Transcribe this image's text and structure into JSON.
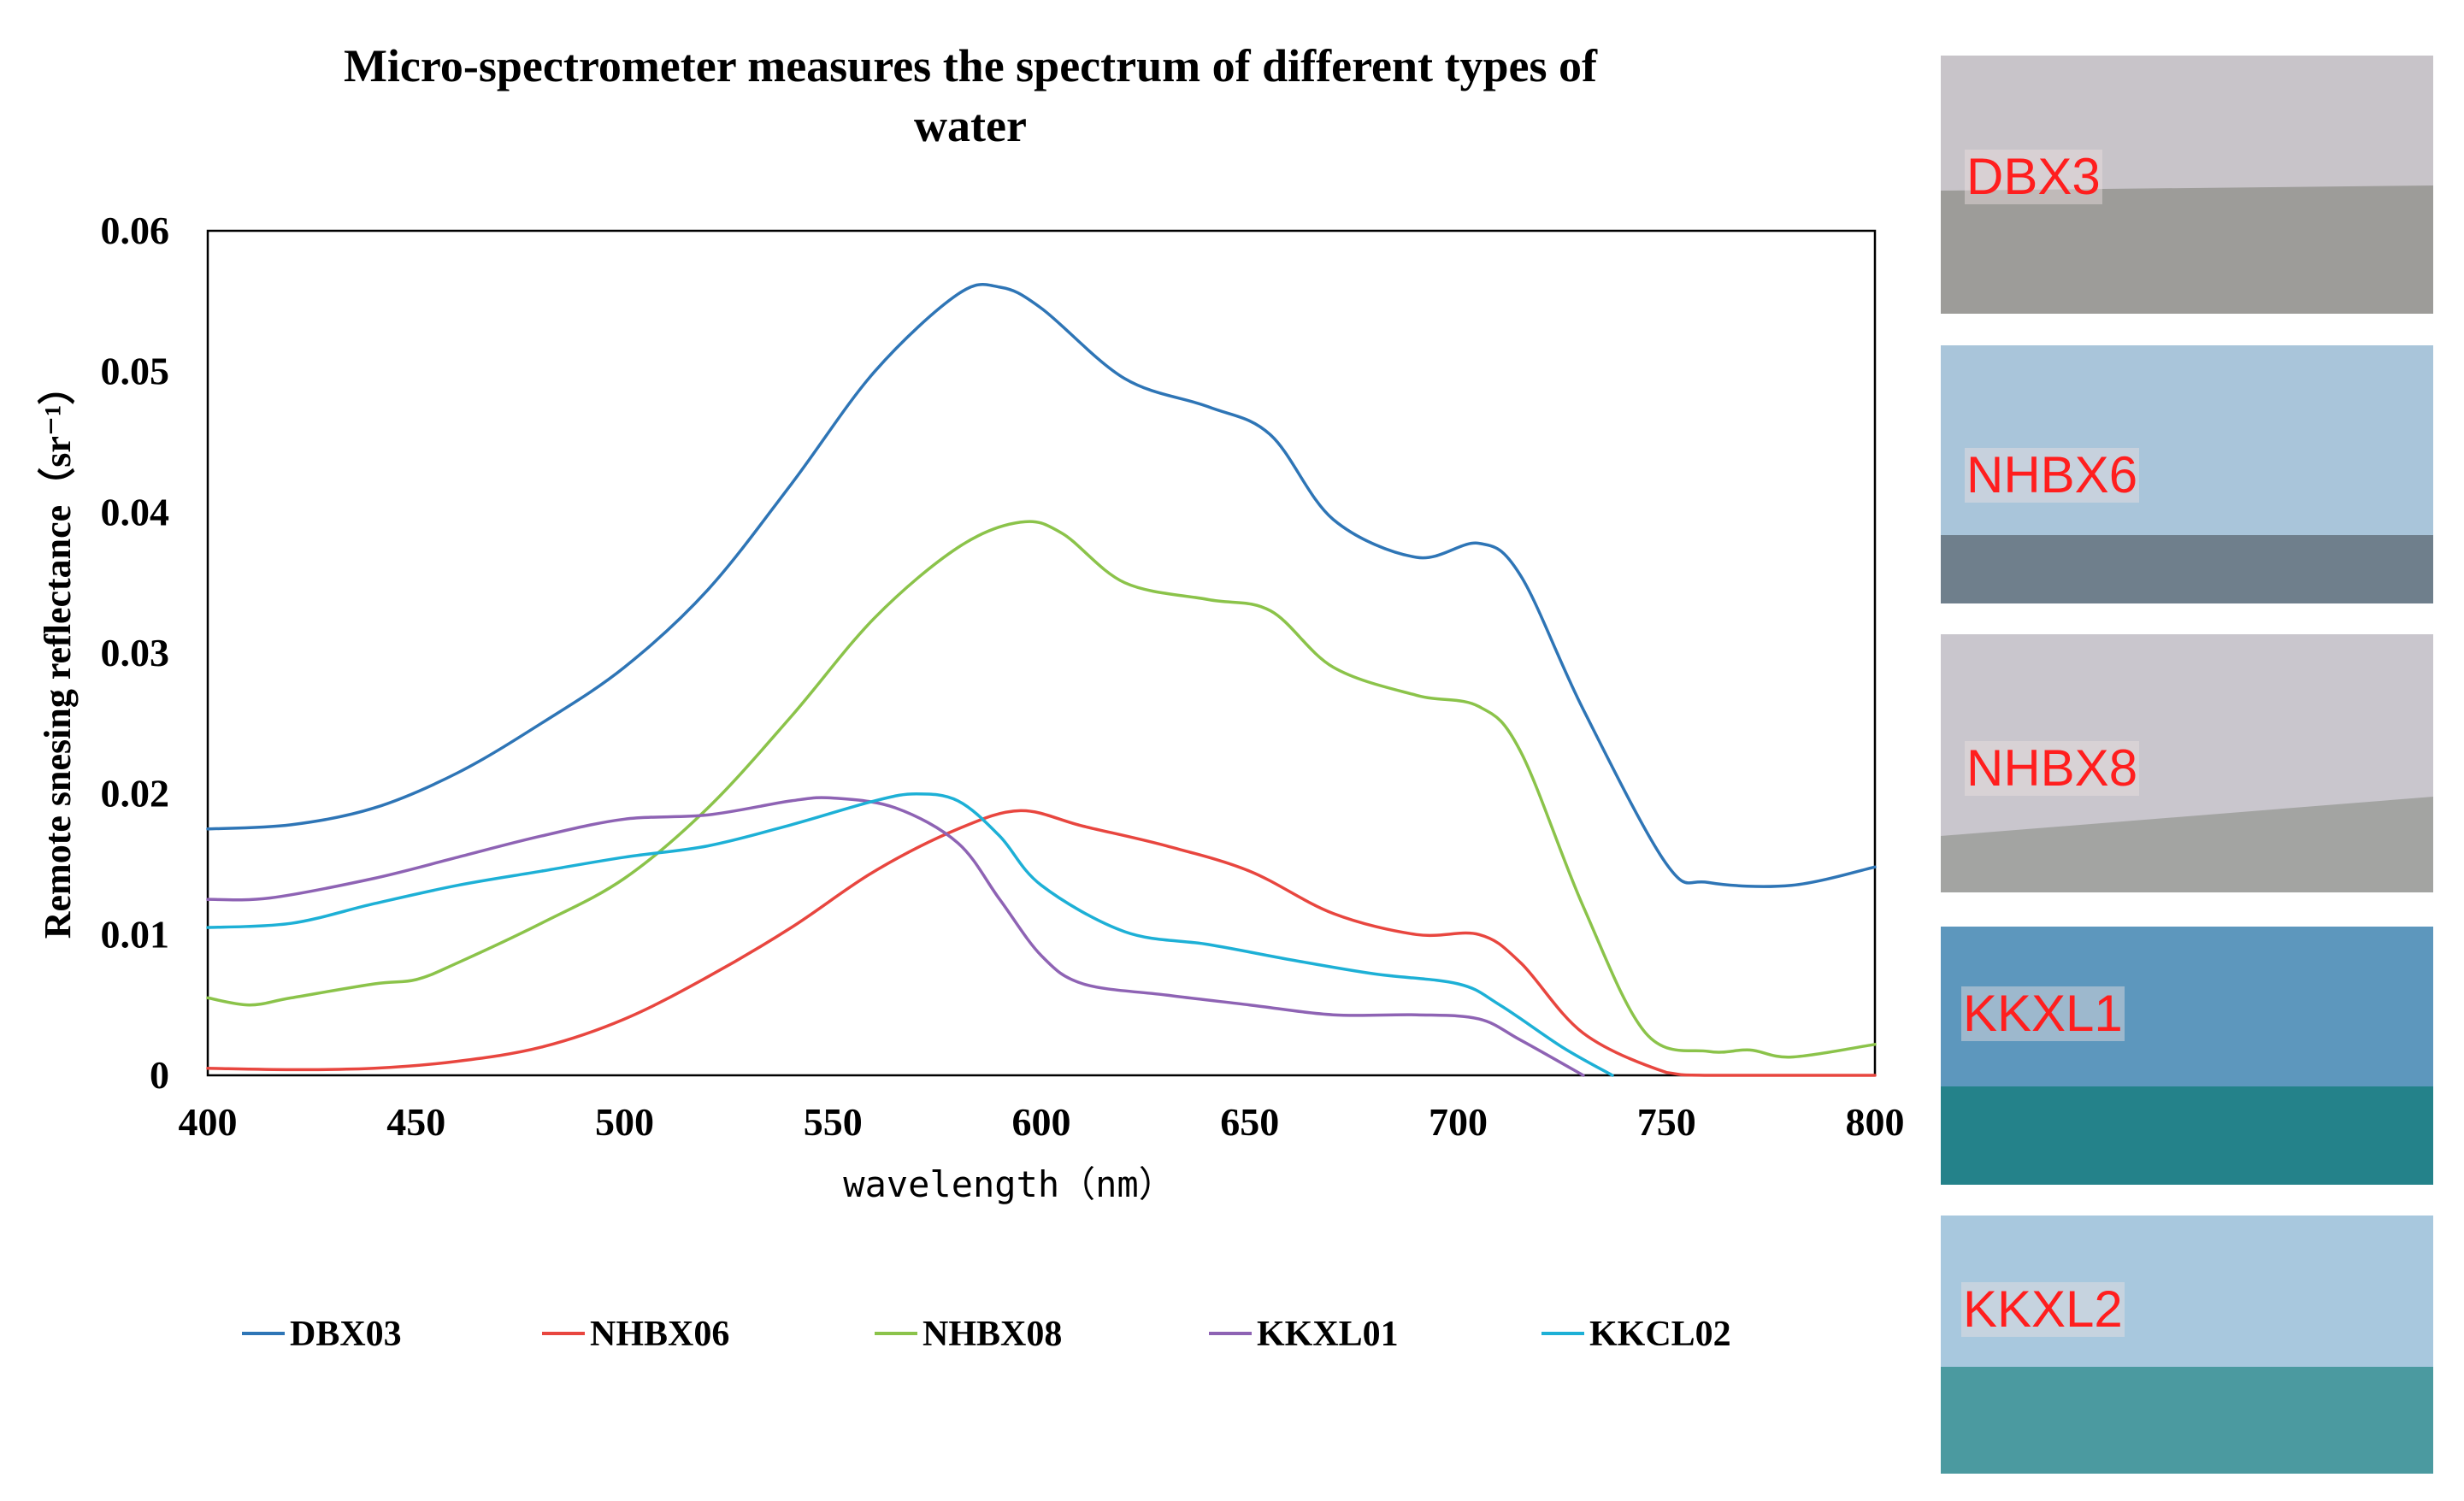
{
  "chart_data": {
    "type": "line",
    "title": "Micro-spectrometer measures the spectrum of different types of water",
    "title_lines": [
      "Micro-spectrometer measures the spectrum of different types of",
      "water"
    ],
    "xlabel": "wavelength（nm）",
    "ylabel": "Remote snesing reflectance（sr⁻¹）",
    "xlim": [
      400,
      800
    ],
    "ylim": [
      0,
      0.06
    ],
    "xticks": [
      400,
      450,
      500,
      550,
      600,
      650,
      700,
      750,
      800
    ],
    "xtick_labels": [
      "400",
      "450",
      "500",
      "550",
      "600",
      "650",
      "700",
      "750",
      "800"
    ],
    "yticks": [
      0,
      0.01,
      0.02,
      0.03,
      0.04,
      0.05,
      0.06
    ],
    "ytick_labels": [
      "0",
      "0.01",
      "0.02",
      "0.03",
      "0.04",
      "0.05",
      "0.06"
    ],
    "grid": false,
    "legend_position": "bottom",
    "series": [
      {
        "name": "DBX03",
        "color": "#2e75b6",
        "x": [
          400,
          420,
          440,
          460,
          480,
          500,
          520,
          540,
          560,
          580,
          590,
          600,
          620,
          640,
          655,
          670,
          690,
          705,
          715,
          730,
          750,
          760,
          780,
          800
        ],
        "y": [
          0.0175,
          0.0178,
          0.019,
          0.0215,
          0.025,
          0.029,
          0.0345,
          0.042,
          0.05,
          0.0555,
          0.056,
          0.0545,
          0.0495,
          0.0475,
          0.0455,
          0.0395,
          0.0368,
          0.0378,
          0.0355,
          0.026,
          0.015,
          0.0137,
          0.0135,
          0.0148
        ]
      },
      {
        "name": "NHBX06",
        "color": "#e8463f",
        "x": [
          400,
          420,
          440,
          460,
          480,
          500,
          520,
          540,
          560,
          580,
          595,
          610,
          630,
          650,
          670,
          690,
          705,
          715,
          730,
          750,
          760,
          800
        ],
        "y": [
          0.0005,
          0.0004,
          0.0005,
          0.001,
          0.002,
          0.004,
          0.007,
          0.0105,
          0.0145,
          0.0175,
          0.0188,
          0.0177,
          0.0163,
          0.0145,
          0.0115,
          0.01,
          0.01,
          0.008,
          0.003,
          0.0002,
          0.0,
          0.0
        ]
      },
      {
        "name": "NHBX08",
        "color": "#8bc34a",
        "x": [
          400,
          410,
          420,
          440,
          450,
          460,
          480,
          500,
          520,
          540,
          560,
          580,
          595,
          605,
          620,
          640,
          655,
          670,
          690,
          705,
          715,
          730,
          745,
          760,
          770,
          780,
          800
        ],
        "y": [
          0.0055,
          0.005,
          0.0055,
          0.0065,
          0.0068,
          0.008,
          0.0108,
          0.014,
          0.019,
          0.0255,
          0.0325,
          0.0375,
          0.0393,
          0.0385,
          0.035,
          0.0338,
          0.033,
          0.029,
          0.027,
          0.0262,
          0.023,
          0.012,
          0.003,
          0.0017,
          0.0018,
          0.0013,
          0.0022
        ]
      },
      {
        "name": "KKXL01",
        "color": "#8e63b4",
        "x": [
          400,
          415,
          440,
          460,
          480,
          500,
          520,
          540,
          550,
          565,
          580,
          590,
          600,
          610,
          630,
          650,
          670,
          690,
          705,
          715,
          730
        ],
        "y": [
          0.0125,
          0.0126,
          0.014,
          0.0155,
          0.017,
          0.0182,
          0.0185,
          0.0195,
          0.0197,
          0.019,
          0.0165,
          0.0125,
          0.0085,
          0.0065,
          0.0057,
          0.005,
          0.0043,
          0.0043,
          0.004,
          0.0025,
          0.0
        ]
      },
      {
        "name": "KKCL02",
        "color": "#1db0d6",
        "x": [
          400,
          420,
          440,
          460,
          480,
          500,
          520,
          540,
          560,
          570,
          580,
          590,
          600,
          620,
          640,
          660,
          680,
          700,
          710,
          725,
          737
        ],
        "y": [
          0.0105,
          0.0108,
          0.0122,
          0.0135,
          0.0145,
          0.0155,
          0.0163,
          0.0178,
          0.0195,
          0.02,
          0.0195,
          0.017,
          0.0135,
          0.0102,
          0.0093,
          0.0082,
          0.0072,
          0.0065,
          0.005,
          0.002,
          0.0
        ]
      }
    ]
  },
  "photos": [
    {
      "label": "DBX3",
      "sky_color": "#c8c4c9",
      "water_color": "#9d9c99"
    },
    {
      "label": "NHBX6",
      "sky_color": "#a9c5da",
      "water_color": "#6f7f8c"
    },
    {
      "label": "NHBX8",
      "sky_color": "#c9c6cd",
      "water_color": "#a3a4a2"
    },
    {
      "label": "KKXL1",
      "sky_color": "#5d97bd",
      "water_color": "#24828a"
    },
    {
      "label": "KKXL2",
      "sky_color": "#a8c8de",
      "water_color": "#4b9aa0"
    }
  ]
}
